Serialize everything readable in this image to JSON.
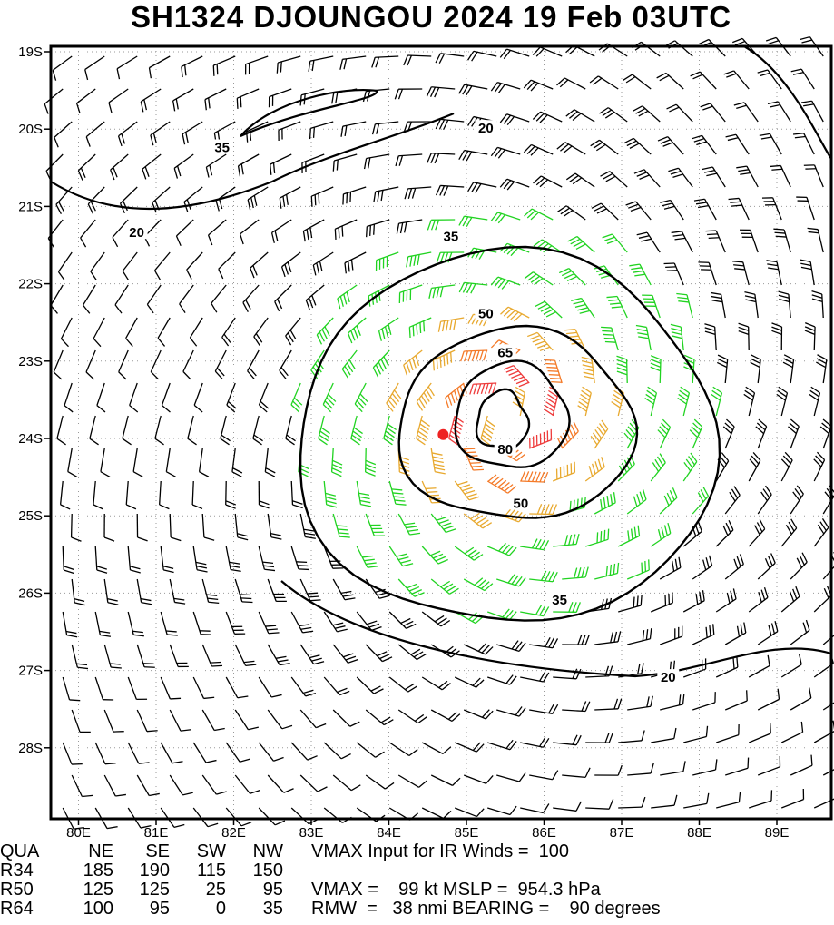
{
  "title": "SH1324   DJOUNGOU 2024 19 Feb 03UTC",
  "chart_data": {
    "type": "wind_barb_contour_map",
    "storm_center": {
      "lon": 84.7,
      "lat": -23.95
    },
    "lon_range": [
      79.6,
      89.7
    ],
    "lat_range": [
      -28.95,
      -19.1
    ],
    "lat_ticks": [
      {
        "value": -19,
        "label": "19S"
      },
      {
        "value": -20,
        "label": "20S"
      },
      {
        "value": -21,
        "label": "21S"
      },
      {
        "value": -22,
        "label": "22S"
      },
      {
        "value": -23,
        "label": "23S"
      },
      {
        "value": -24,
        "label": "24S"
      },
      {
        "value": -25,
        "label": "25S"
      },
      {
        "value": -26,
        "label": "26S"
      },
      {
        "value": -27,
        "label": "27S"
      },
      {
        "value": -28,
        "label": "28S"
      }
    ],
    "lon_ticks": [
      {
        "value": 80,
        "label": "80E"
      },
      {
        "value": 81,
        "label": "81E"
      },
      {
        "value": 82,
        "label": "82E"
      },
      {
        "value": 83,
        "label": "83E"
      },
      {
        "value": 84,
        "label": "84E"
      },
      {
        "value": 85,
        "label": "85E"
      },
      {
        "value": 86,
        "label": "86E"
      },
      {
        "value": 87,
        "label": "87E"
      },
      {
        "value": 88,
        "label": "88E"
      },
      {
        "value": 89,
        "label": "89E"
      }
    ],
    "contour_labels": [
      {
        "text": "20",
        "lon": 85.25,
        "lat": -20.0
      },
      {
        "text": "35",
        "lon": 81.85,
        "lat": -20.25
      },
      {
        "text": "20",
        "lon": 80.75,
        "lat": -21.35
      },
      {
        "text": "35",
        "lon": 84.8,
        "lat": -21.4
      },
      {
        "text": "50",
        "lon": 85.25,
        "lat": -22.4
      },
      {
        "text": "65",
        "lon": 85.5,
        "lat": -22.9
      },
      {
        "text": "80",
        "lon": 85.5,
        "lat": -24.15
      },
      {
        "text": "50",
        "lon": 85.7,
        "lat": -24.85
      },
      {
        "text": "35",
        "lon": 86.2,
        "lat": -26.1
      },
      {
        "text": "20",
        "lon": 87.6,
        "lat": -27.1
      }
    ],
    "wind_speed_colors": {
      "below_34": "#000000",
      "34_to_49": "#21d321",
      "50_to_63": "#e8a92f",
      "64_to_79": "#f47a28",
      "80_plus": "#ee3b3b"
    },
    "contour_color": "#000000",
    "center_color": "#ee2222"
  },
  "table": {
    "header": {
      "c1": "QUA",
      "c2": "NE",
      "c3": "SE",
      "c4": "SW",
      "c5": "NW",
      "extra": "VMAX Input for IR Winds =  100"
    },
    "rows": [
      {
        "c1": "R34",
        "c2": "185",
        "c3": "190",
        "c4": "115",
        "c5": "150",
        "extra": ""
      },
      {
        "c1": "R50",
        "c2": "125",
        "c3": "125",
        "c4": "25",
        "c5": "95",
        "extra": "VMAX =    99 kt MSLP =  954.3 hPa"
      },
      {
        "c1": "R64",
        "c2": "100",
        "c3": "95",
        "c4": "0",
        "c5": "35",
        "extra": "RMW  =   38 nmi BEARING =    90 degrees"
      }
    ]
  }
}
